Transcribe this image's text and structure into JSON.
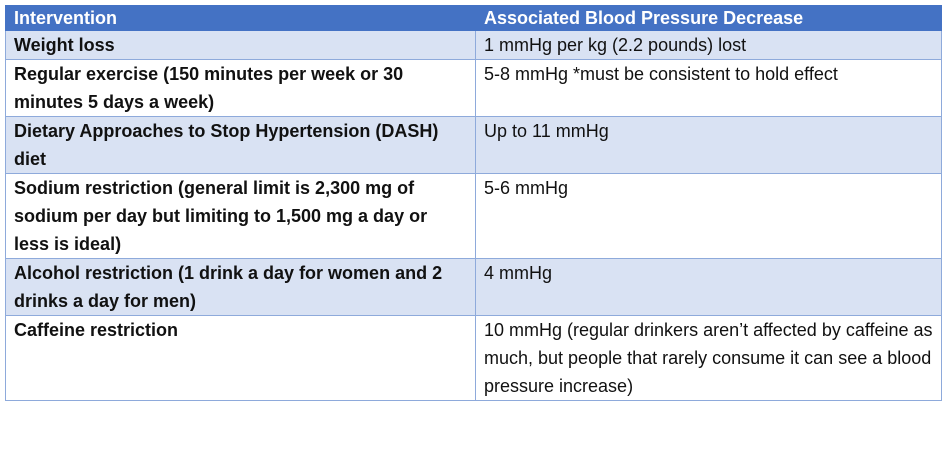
{
  "headers": {
    "intervention": "Intervention",
    "decrease": "Associated Blood Pressure Decrease"
  },
  "rows": [
    {
      "intervention": "Weight loss",
      "decrease": "1 mmHg per kg (2.2 pounds) lost"
    },
    {
      "intervention": "Regular exercise (150 minutes per week or 30 minutes 5 days a week)",
      "decrease": "5-8 mmHg *must be consistent to hold effect"
    },
    {
      "intervention": "Dietary Approaches to Stop Hypertension (DASH) diet",
      "decrease": "Up to 11 mmHg"
    },
    {
      "intervention": "Sodium restriction (general limit is 2,300 mg of sodium per day but limiting to 1,500 mg a day or less is ideal)",
      "decrease": "5-6 mmHg"
    },
    {
      "intervention": "Alcohol restriction (1 drink a day for women and 2 drinks a day for men)",
      "decrease": "4 mmHg"
    },
    {
      "intervention": "Caffeine restriction",
      "decrease": "10 mmHg (regular drinkers aren’t affected by caffeine as much, but people that rarely consume it can see a blood pressure increase)"
    }
  ],
  "colors": {
    "header_background": "#4472c4",
    "header_text": "#ffffff",
    "shaded_row": "#d9e2f3",
    "border": "#8eaadb"
  }
}
